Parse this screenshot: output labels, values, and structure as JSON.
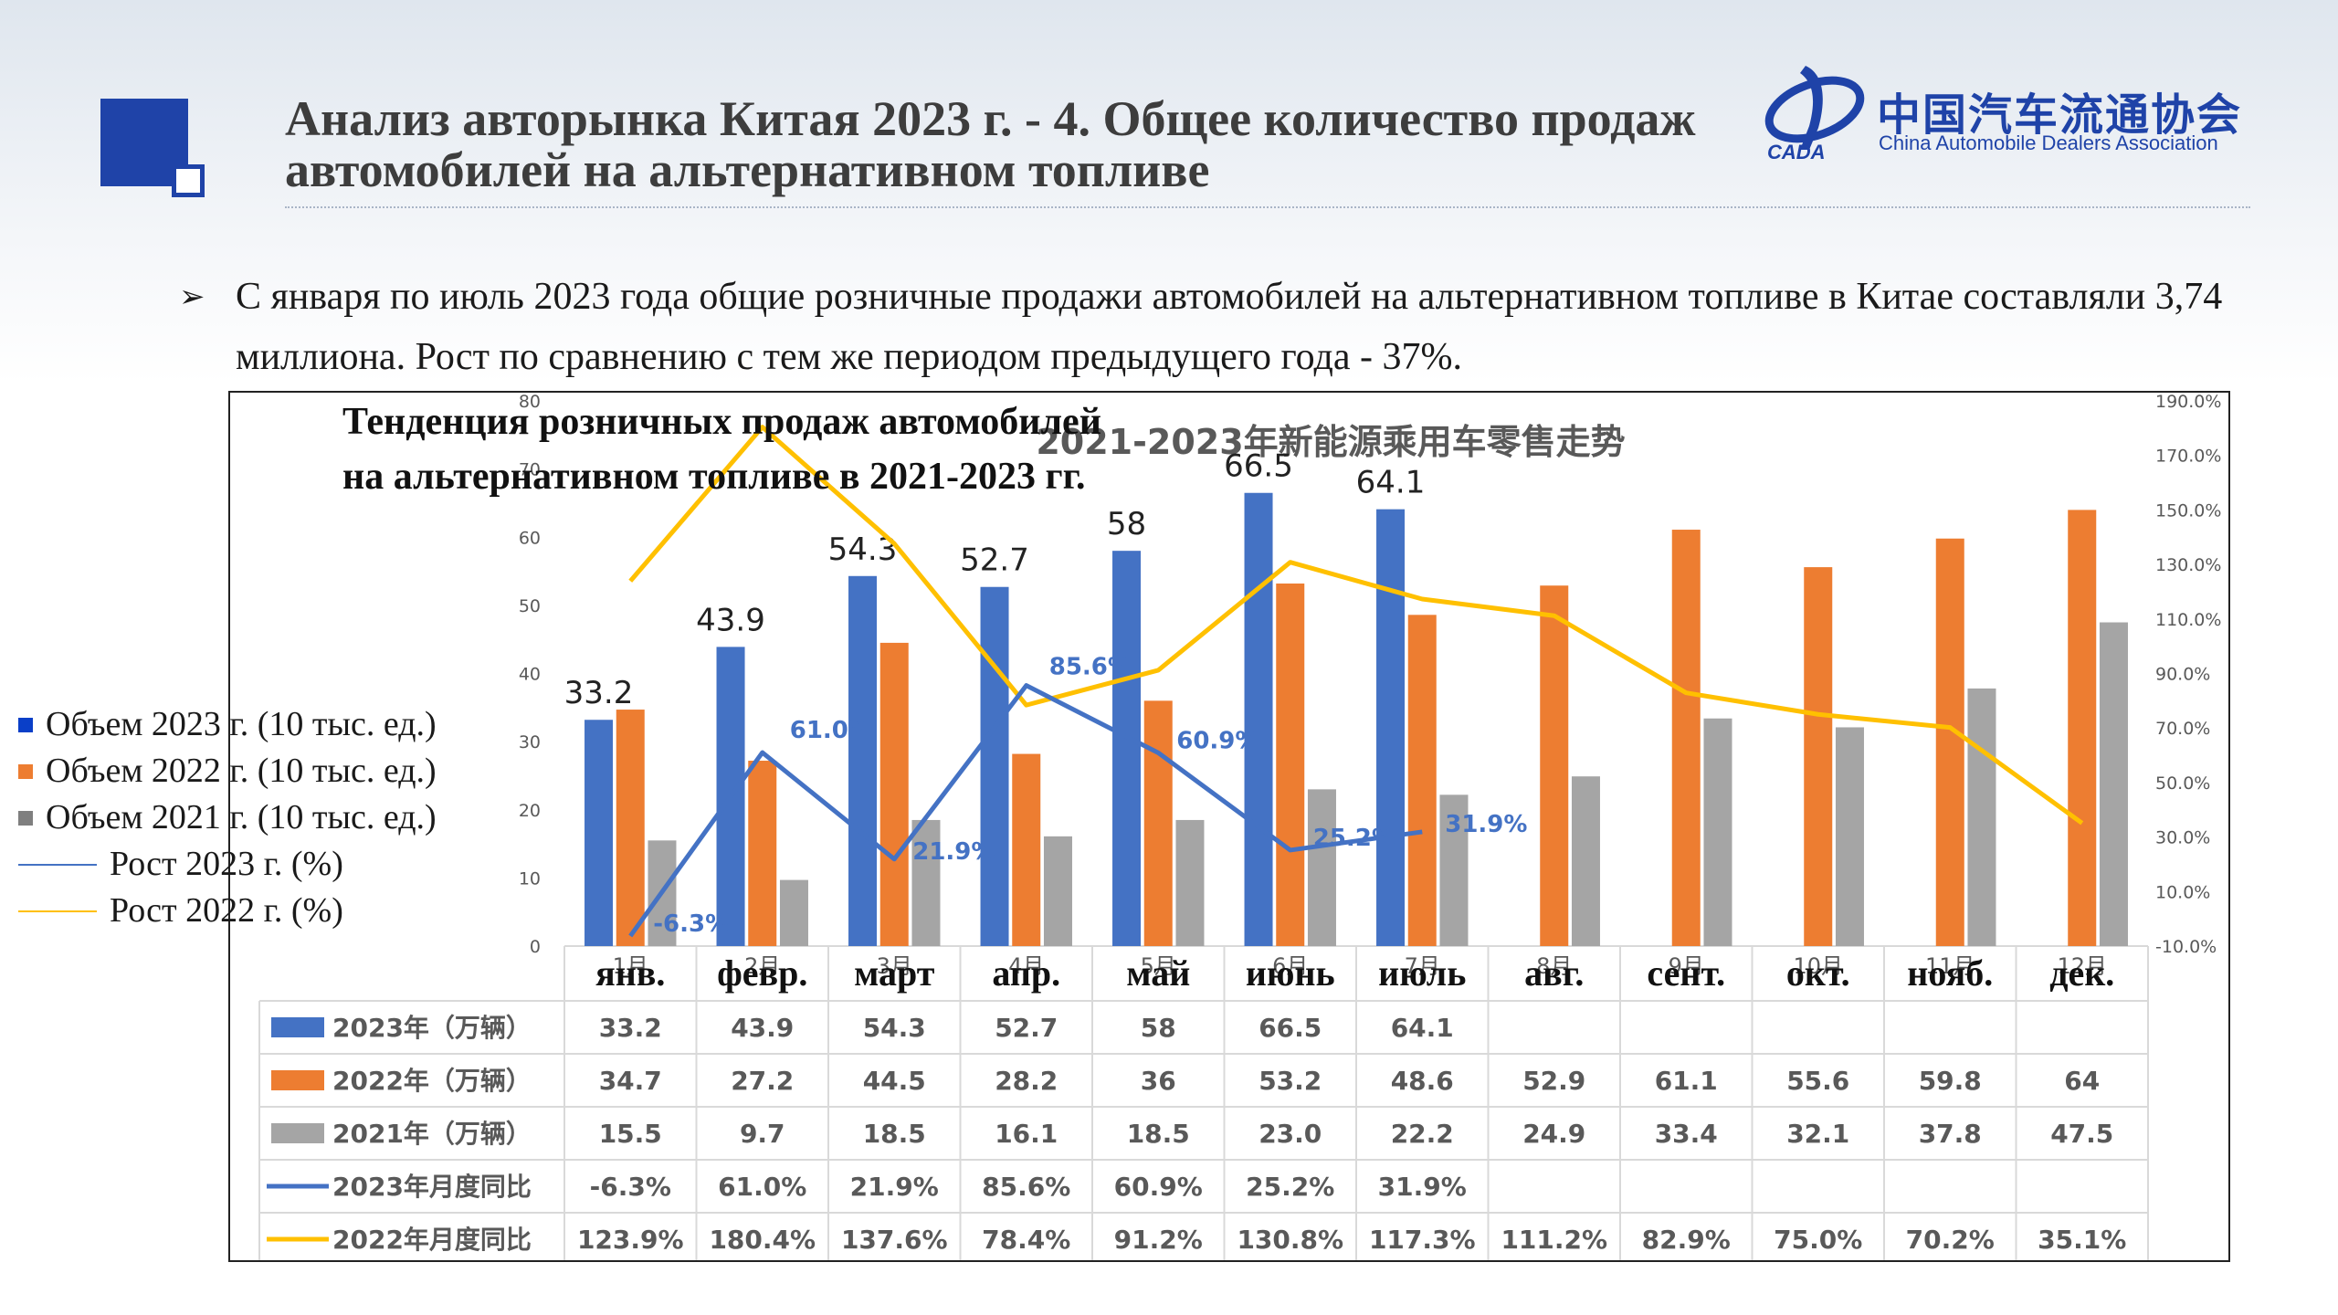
{
  "header": {
    "title": "Анализ авторынка Китая 2023 г. - 4. Общее количество продаж автомобилей на альтернативном топливе",
    "logo_cn": "中国汽车流通协会",
    "logo_en": "China Automobile Dealers Association",
    "logo_mark_text": "CADA"
  },
  "bullet": {
    "text": "С января по июль 2023 года общие розничные продажи автомобилей на альтернативном топливе в Китае составляли 3,74 миллиона. Рост по сравнению с тем же периодом предыдущего года - 37%."
  },
  "chart_title_ru": "Тенденция розничных продаж автомобилей на альтернативном топливе в 2021-2023 гг.",
  "legend": [
    {
      "label": "Объем 2023 г. (10 тыс. ед.)",
      "kind": "square",
      "color": "#0a3fc8"
    },
    {
      "label": "Объем 2022 г. (10 тыс. ед.)",
      "kind": "square",
      "color": "#ed7d31"
    },
    {
      "label": "Объем 2021 г. (10 тыс. ед.)",
      "kind": "square",
      "color": "#7f7f7f"
    },
    {
      "label": "Рост 2023 г. (%)",
      "kind": "line",
      "color": "#4472c4"
    },
    {
      "label": "Рост 2022 г. (%)",
      "kind": "line",
      "color": "#ffc000"
    }
  ],
  "colors": {
    "bar_2023": "#4472c4",
    "bar_2022": "#ed7d31",
    "bar_2021": "#a5a5a5",
    "line_2023": "#4472c4",
    "line_2022": "#ffc000"
  },
  "chart_data": {
    "type": "bar",
    "title": "2021-2023年新能源乘用车零售走势",
    "categories_cn": [
      "1月",
      "2月",
      "3月",
      "4月",
      "5月",
      "6月",
      "7月",
      "8月",
      "9月",
      "10月",
      "11月",
      "12月"
    ],
    "categories": [
      "янв.",
      "февр.",
      "март",
      "апр.",
      "май",
      "июнь",
      "июль",
      "авг.",
      "сент.",
      "окт.",
      "нояб.",
      "дек."
    ],
    "y_left": {
      "min": 0,
      "max": 80,
      "ticks": [
        0,
        10,
        20,
        30,
        40,
        50,
        60,
        70,
        80
      ]
    },
    "y_right": {
      "min": -10,
      "max": 190,
      "ticks": [
        "-10.0%",
        "10.0%",
        "30.0%",
        "50.0%",
        "70.0%",
        "90.0%",
        "110.0%",
        "130.0%",
        "150.0%",
        "170.0%",
        "190.0%"
      ]
    },
    "series": [
      {
        "name": "2023年（万辆）",
        "kind": "bar",
        "axis": "left",
        "values": [
          33.2,
          43.9,
          54.3,
          52.7,
          58,
          66.5,
          64.1,
          null,
          null,
          null,
          null,
          null
        ],
        "table": [
          "33.2",
          "43.9",
          "54.3",
          "52.7",
          "58",
          "66.5",
          "64.1",
          "",
          "",
          "",
          "",
          ""
        ]
      },
      {
        "name": "2022年（万辆）",
        "kind": "bar",
        "axis": "left",
        "values": [
          34.7,
          27.2,
          44.5,
          28.2,
          36,
          53.2,
          48.6,
          52.9,
          61.1,
          55.6,
          59.8,
          64
        ],
        "table": [
          "34.7",
          "27.2",
          "44.5",
          "28.2",
          "36",
          "53.2",
          "48.6",
          "52.9",
          "61.1",
          "55.6",
          "59.8",
          "64"
        ]
      },
      {
        "name": "2021年（万辆）",
        "kind": "bar",
        "axis": "left",
        "values": [
          15.5,
          9.7,
          18.5,
          16.1,
          18.5,
          23.0,
          22.2,
          24.9,
          33.4,
          32.1,
          37.8,
          47.5
        ],
        "table": [
          "15.5",
          "9.7",
          "18.5",
          "16.1",
          "18.5",
          "23.0",
          "22.2",
          "24.9",
          "33.4",
          "32.1",
          "37.8",
          "47.5"
        ]
      },
      {
        "name": "2023年月度同比",
        "kind": "line",
        "axis": "right",
        "values": [
          -6.3,
          61.0,
          21.9,
          85.6,
          60.9,
          25.2,
          31.9,
          null,
          null,
          null,
          null,
          null
        ],
        "table": [
          "-6.3%",
          "61.0%",
          "21.9%",
          "85.6%",
          "60.9%",
          "25.2%",
          "31.9%",
          "",
          "",
          "",
          "",
          ""
        ]
      },
      {
        "name": "2022年月度同比",
        "kind": "line",
        "axis": "right",
        "values": [
          123.9,
          180.4,
          137.6,
          78.4,
          91.2,
          130.8,
          117.3,
          111.2,
          82.9,
          75.0,
          70.2,
          35.1
        ],
        "table": [
          "123.9%",
          "180.4%",
          "137.6%",
          "78.4%",
          "91.2%",
          "130.8%",
          "117.3%",
          "111.2%",
          "82.9%",
          "75.0%",
          "70.2%",
          "35.1%"
        ]
      }
    ],
    "bar_labels_2023": [
      "33.2",
      "43.9",
      "54.3",
      "52.7",
      "58",
      "66.5",
      "64.1"
    ],
    "line_labels_2023": [
      "-6.3%",
      "61.0%",
      "21.9%",
      "85.6%",
      "60.9%",
      "25.2%",
      "31.9%"
    ],
    "grid": false,
    "legend_position": "left"
  }
}
